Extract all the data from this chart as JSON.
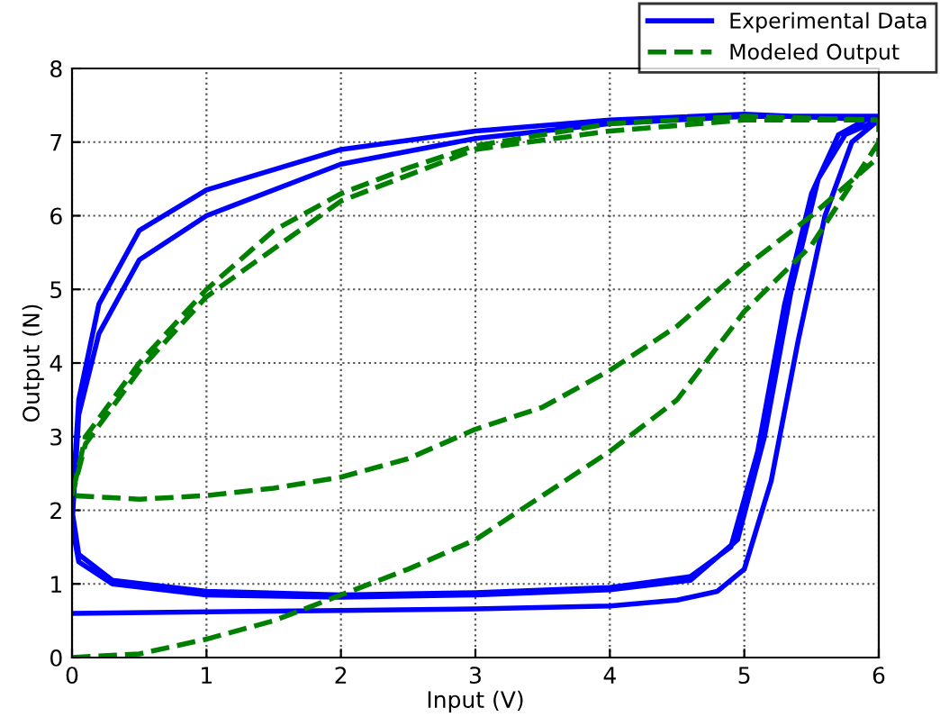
{
  "chart_data": {
    "type": "line",
    "xlabel": "Input (V)",
    "ylabel": "Output (N)",
    "xlim": [
      0,
      6
    ],
    "ylim": [
      0,
      8
    ],
    "xticks": [
      0,
      1,
      2,
      3,
      4,
      5,
      6
    ],
    "yticks": [
      0,
      1,
      2,
      3,
      4,
      5,
      6,
      7,
      8
    ],
    "grid": true,
    "legend": "top right",
    "series": [
      {
        "name": "Experimental Data",
        "color": "#0000ff",
        "line_style": "solid",
        "x": [
          0,
          1,
          2,
          3,
          4,
          4.5,
          4.8,
          5.0,
          5.2,
          5.4,
          5.6,
          5.8,
          6,
          5,
          4,
          3,
          2,
          1,
          0.5,
          0.2,
          0.05,
          0,
          0.05,
          0.3,
          1,
          2,
          3,
          4,
          4.6,
          4.9,
          5.1,
          5.3,
          5.5,
          5.7,
          5.9,
          6,
          5,
          4,
          3,
          2,
          1,
          0.5,
          0.2,
          0.05,
          0,
          0.05,
          0.3,
          1,
          2,
          3,
          4,
          4.6,
          4.95,
          5.15,
          5.35,
          5.55,
          5.75,
          6
        ],
        "values": [
          0.6,
          0.62,
          0.64,
          0.66,
          0.7,
          0.78,
          0.9,
          1.2,
          2.4,
          4.3,
          6.0,
          7.0,
          7.3,
          7.38,
          7.3,
          7.15,
          6.9,
          6.35,
          5.8,
          4.8,
          3.5,
          2.0,
          1.4,
          1.05,
          0.9,
          0.85,
          0.88,
          0.95,
          1.1,
          1.5,
          2.8,
          4.8,
          6.3,
          7.1,
          7.3,
          7.35,
          7.35,
          7.25,
          7.05,
          6.7,
          6.0,
          5.4,
          4.4,
          3.3,
          1.8,
          1.3,
          1.0,
          0.85,
          0.82,
          0.85,
          0.92,
          1.05,
          1.6,
          3.0,
          5.0,
          6.5,
          7.1,
          7.3
        ]
      },
      {
        "name": "Modeled Output",
        "color": "#008000",
        "line_style": "dashed",
        "x": [
          0,
          0.5,
          1,
          1.5,
          2,
          2.5,
          3,
          3.5,
          4,
          4.5,
          5,
          5.5,
          6,
          6,
          5,
          4,
          3,
          2.5,
          2,
          1.5,
          1,
          0.5,
          0.1,
          0,
          0.5,
          1,
          1.5,
          2,
          2.5,
          3,
          3.5,
          4,
          4.5,
          5,
          5.5,
          6,
          6,
          5,
          4,
          3,
          2,
          1,
          0.5,
          0.1,
          0
        ],
        "values": [
          0.0,
          0.05,
          0.25,
          0.5,
          0.85,
          1.2,
          1.6,
          2.2,
          2.8,
          3.5,
          4.7,
          5.6,
          7.0,
          7.3,
          7.35,
          7.25,
          6.95,
          6.65,
          6.3,
          5.8,
          5.0,
          4.0,
          3.0,
          2.2,
          2.15,
          2.2,
          2.3,
          2.45,
          2.7,
          3.1,
          3.4,
          3.9,
          4.5,
          5.3,
          6.0,
          6.8,
          7.3,
          7.3,
          7.15,
          6.9,
          6.2,
          4.9,
          3.9,
          2.9,
          2.2
        ]
      }
    ]
  }
}
